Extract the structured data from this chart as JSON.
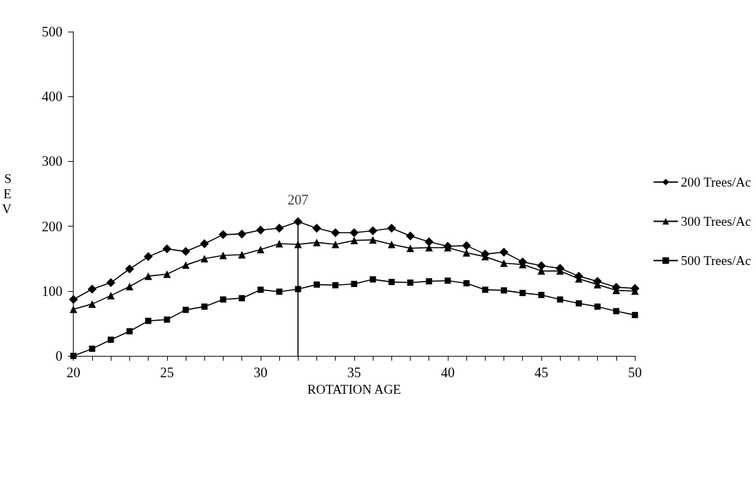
{
  "chart_data": {
    "type": "line",
    "xlabel": "ROTATION AGE",
    "ylabel": "SEV",
    "xlim": [
      20,
      50
    ],
    "ylim": [
      0,
      500
    ],
    "yticks": [
      0,
      100,
      200,
      300,
      400,
      500
    ],
    "xticks": [
      20,
      {
        "value": 21,
        "label": null
      },
      {
        "value": 22,
        "label": null
      },
      {
        "value": 23,
        "label": null
      },
      {
        "value": 24,
        "label": null
      },
      25,
      {
        "value": 26,
        "label": null
      },
      {
        "value": 27,
        "label": null
      },
      {
        "value": 28,
        "label": null
      },
      {
        "value": 29,
        "label": null
      },
      30,
      {
        "value": 31,
        "label": null
      },
      {
        "value": 32,
        "label": null
      },
      {
        "value": 33,
        "label": null
      },
      {
        "value": 34,
        "label": null
      },
      35,
      {
        "value": 36,
        "label": null
      },
      {
        "value": 37,
        "label": null
      },
      {
        "value": 38,
        "label": null
      },
      {
        "value": 39,
        "label": null
      },
      40,
      {
        "value": 41,
        "label": null
      },
      {
        "value": 42,
        "label": null
      },
      {
        "value": 43,
        "label": null
      },
      {
        "value": 44,
        "label": null
      },
      45,
      {
        "value": 46,
        "label": null
      },
      {
        "value": 47,
        "label": null
      },
      {
        "value": 48,
        "label": null
      },
      {
        "value": 49,
        "label": null
      },
      50
    ],
    "x": [
      20,
      21,
      22,
      23,
      24,
      25,
      26,
      27,
      28,
      29,
      30,
      31,
      32,
      33,
      34,
      35,
      36,
      37,
      38,
      39,
      40,
      41,
      42,
      43,
      44,
      45,
      46,
      47,
      48,
      49,
      50
    ],
    "grid": false,
    "legend": "right",
    "line_style": "solid",
    "series": [
      {
        "name": "200 Trees/Ac",
        "color": "#000000",
        "marker": "diamond",
        "values": [
          87,
          103,
          113,
          134,
          153,
          165,
          161,
          173,
          187,
          188,
          194,
          197,
          207,
          197,
          190,
          190,
          193,
          197,
          185,
          176,
          169,
          170,
          157,
          160,
          145,
          139,
          135,
          123,
          115,
          106,
          104
        ]
      },
      {
        "name": "300 Trees/Ac",
        "color": "#000000",
        "marker": "triangle",
        "values": [
          72,
          80,
          93,
          107,
          123,
          126,
          140,
          150,
          155,
          156,
          164,
          173,
          172,
          175,
          172,
          178,
          179,
          172,
          166,
          167,
          167,
          159,
          153,
          143,
          141,
          131,
          131,
          119,
          110,
          101,
          100
        ]
      },
      {
        "name": "500 Trees/Ac",
        "color": "#000000",
        "marker": "square",
        "values": [
          0,
          11,
          25,
          38,
          54,
          56,
          71,
          76,
          87,
          89,
          102,
          99,
          103,
          110,
          109,
          111,
          118,
          114,
          113,
          115,
          116,
          112,
          102,
          101,
          97,
          94,
          87,
          81,
          76,
          69,
          63
        ]
      },
      {
        "type": "line",
        "color": "#000000",
        "marker": "none",
        "x": [
          32,
          32
        ],
        "values": [
          0,
          207
        ]
      }
    ],
    "annotations": [
      {
        "text": "207",
        "x": 32,
        "y": 207
      }
    ]
  }
}
